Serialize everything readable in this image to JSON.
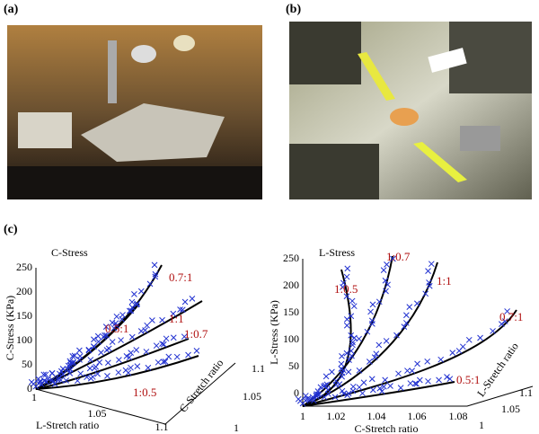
{
  "panels": {
    "a": "(a)",
    "b": "(b)",
    "c": "(c)"
  },
  "left_plot": {
    "title": "C-Stress",
    "y_label": "C-Stress (KPa)",
    "y_ticks": [
      "0",
      "50",
      "100",
      "150",
      "200",
      "250"
    ],
    "x_label": "L-Stretch ratio",
    "x_ticks": [
      "1",
      "1.05",
      "1.1"
    ],
    "z_label": "C-Stretch ratio",
    "z_ticks": [
      "1",
      "1.05",
      "1.1"
    ],
    "curve_labels": [
      "0.5:1",
      "0.7:1",
      "1:1",
      "1:0.7",
      "1:0.5"
    ]
  },
  "right_plot": {
    "title": "L-Stress",
    "y_label": "L-Stress (KPa)",
    "y_ticks": [
      "0",
      "50",
      "100",
      "150",
      "200",
      "250"
    ],
    "x_label": "C-Stretch ratio",
    "x_ticks": [
      "1",
      "1.02",
      "1.04",
      "1.06",
      "1.08"
    ],
    "z_label": "L-Stretch ratio",
    "z_ticks": [
      "1",
      "1.05",
      "1.1"
    ],
    "curve_labels": [
      "1:0.5",
      "1:0.7",
      "1:1",
      "0.7:1",
      "0.5:1"
    ]
  }
}
